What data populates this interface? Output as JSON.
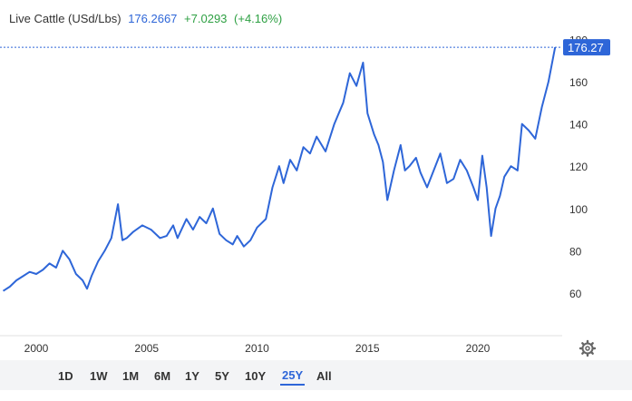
{
  "header": {
    "instrument": "Live Cattle (USd/Lbs)",
    "price": "176.2667",
    "change": "+7.0293",
    "change_pct": "(+4.16%)"
  },
  "last_price_tag": "176.27",
  "ranges": [
    "1D",
    "1W",
    "1M",
    "6M",
    "1Y",
    "5Y",
    "10Y",
    "25Y",
    "All"
  ],
  "active_range": "25Y",
  "colors": {
    "line": "#2e66d8",
    "positive": "#2ea043",
    "price": "#2e66d8",
    "axis_text": "#333333"
  },
  "settings_icon": "gear-icon",
  "chart_data": {
    "type": "line",
    "title": "",
    "xlabel": "",
    "ylabel": "",
    "xlim": [
      1998.5,
      2023.6
    ],
    "ylim": [
      40,
      186
    ],
    "x_ticks": [
      2000,
      2005,
      2010,
      2015,
      2020
    ],
    "y_ticks": [
      60,
      80,
      100,
      120,
      140,
      160,
      180
    ],
    "grid": false,
    "series": [
      {
        "x": [
          1998.5,
          1998.8,
          1999.1,
          1999.4,
          1999.7,
          2000.0,
          2000.3,
          2000.6,
          2000.9,
          2001.2,
          2001.5,
          2001.8,
          2002.1,
          2002.3,
          2002.5,
          2002.8,
          2003.1,
          2003.4,
          2003.7,
          2003.9,
          2004.1,
          2004.4,
          2004.8,
          2005.2,
          2005.6,
          2005.9,
          2006.2,
          2006.4,
          2006.8,
          2007.1,
          2007.4,
          2007.7,
          2008.0,
          2008.3,
          2008.6,
          2008.9,
          2009.1,
          2009.4,
          2009.7,
          2010.0,
          2010.4,
          2010.7,
          2011.0,
          2011.2,
          2011.5,
          2011.8,
          2012.1,
          2012.4,
          2012.7,
          2013.1,
          2013.5,
          2013.9,
          2014.2,
          2014.5,
          2014.8,
          2015.0,
          2015.3,
          2015.5,
          2015.7,
          2015.9,
          2016.2,
          2016.5,
          2016.7,
          2016.9,
          2017.2,
          2017.4,
          2017.7,
          2018.0,
          2018.3,
          2018.6,
          2018.9,
          2019.2,
          2019.5,
          2019.8,
          2020.0,
          2020.2,
          2020.4,
          2020.6,
          2020.8,
          2021.0,
          2021.2,
          2021.5,
          2021.8,
          2022.0,
          2022.3,
          2022.6,
          2022.9,
          2023.2,
          2023.5
        ],
        "y": [
          61,
          63,
          66,
          68,
          70,
          69,
          71,
          74,
          72,
          80,
          76,
          69,
          66,
          62,
          68,
          75,
          80,
          86,
          102,
          85,
          86,
          89,
          92,
          90,
          86,
          87,
          92,
          86,
          95,
          90,
          96,
          93,
          100,
          88,
          85,
          83,
          87,
          82,
          85,
          91,
          95,
          110,
          120,
          112,
          123,
          118,
          129,
          126,
          134,
          127,
          140,
          150,
          164,
          158,
          169,
          145,
          135,
          130,
          122,
          104,
          118,
          130,
          118,
          120,
          124,
          117,
          110,
          118,
          126,
          112,
          114,
          123,
          118,
          110,
          104,
          125,
          110,
          87,
          100,
          106,
          115,
          120,
          118,
          140,
          137,
          133,
          148,
          160,
          176.27
        ]
      }
    ]
  }
}
